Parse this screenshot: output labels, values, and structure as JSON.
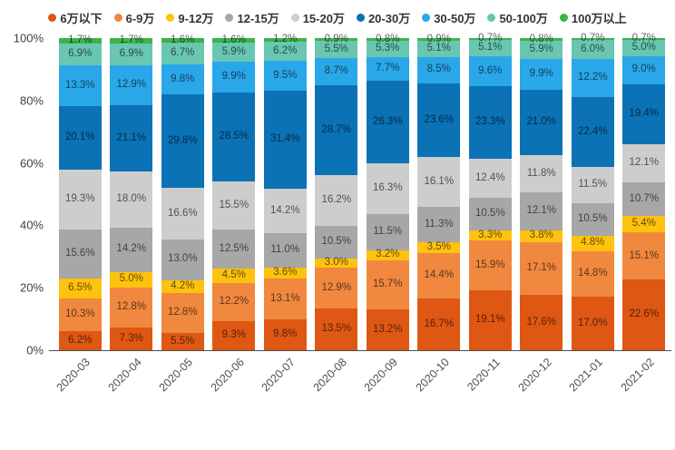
{
  "chart_data": {
    "type": "bar",
    "subtype": "stacked-100-percent",
    "title": "",
    "xlabel": "",
    "ylabel": "",
    "ylim": [
      0,
      100
    ],
    "grid": false,
    "legend_position": "top",
    "value_suffix": "%",
    "y_ticks": [
      "100%",
      "80%",
      "60%",
      "40%",
      "20%",
      "0%"
    ],
    "categories": [
      "2020-03",
      "2020-04",
      "2020-05",
      "2020-06",
      "2020-07",
      "2020-08",
      "2020-09",
      "2020-10",
      "2020-11",
      "2020-12",
      "2021-01",
      "2021-02"
    ],
    "series": [
      {
        "name": "6万以下",
        "color": "#DE5713",
        "values": [
          6.2,
          7.3,
          5.5,
          9.3,
          9.8,
          13.5,
          13.2,
          16.7,
          19.1,
          17.6,
          17.0,
          22.6
        ]
      },
      {
        "name": "6-9万",
        "color": "#F0883F",
        "values": [
          10.3,
          12.8,
          12.8,
          12.2,
          13.1,
          12.9,
          15.7,
          14.4,
          15.9,
          17.1,
          14.8,
          15.1
        ]
      },
      {
        "name": "9-12万",
        "color": "#FFC20E",
        "values": [
          6.5,
          5.0,
          4.2,
          4.5,
          3.6,
          3.0,
          3.2,
          3.5,
          3.3,
          3.8,
          4.8,
          5.4
        ]
      },
      {
        "name": "12-15万",
        "color": "#A7A7A7",
        "values": [
          15.6,
          14.2,
          13.0,
          12.5,
          11.0,
          10.5,
          11.5,
          11.3,
          10.5,
          12.1,
          10.5,
          10.7
        ]
      },
      {
        "name": "15-20万",
        "color": "#CDCDCD",
        "values": [
          19.3,
          18.0,
          16.6,
          15.5,
          14.2,
          16.2,
          16.3,
          16.1,
          12.4,
          11.8,
          11.5,
          12.1
        ]
      },
      {
        "name": "20-30万",
        "color": "#0A72B5",
        "values": [
          20.1,
          21.1,
          29.8,
          28.5,
          31.4,
          28.7,
          26.3,
          23.6,
          23.3,
          21.0,
          22.4,
          19.4
        ]
      },
      {
        "name": "30-50万",
        "color": "#29A7E8",
        "values": [
          13.3,
          12.9,
          9.8,
          9.9,
          9.5,
          8.7,
          7.7,
          8.5,
          9.6,
          9.9,
          12.2,
          9.0
        ]
      },
      {
        "name": "50-100万",
        "color": "#69C6B1",
        "values": [
          6.9,
          6.9,
          6.7,
          5.9,
          6.2,
          5.5,
          5.3,
          5.1,
          5.1,
          5.9,
          6.0,
          5.0
        ]
      },
      {
        "name": "100万以上",
        "color": "#3BB44A",
        "values": [
          1.7,
          1.7,
          1.6,
          1.6,
          1.2,
          0.9,
          0.8,
          0.9,
          0.7,
          0.8,
          0.7,
          0.7
        ]
      }
    ],
    "axis_color": "#4d4d4d",
    "label_color": "#404040"
  }
}
